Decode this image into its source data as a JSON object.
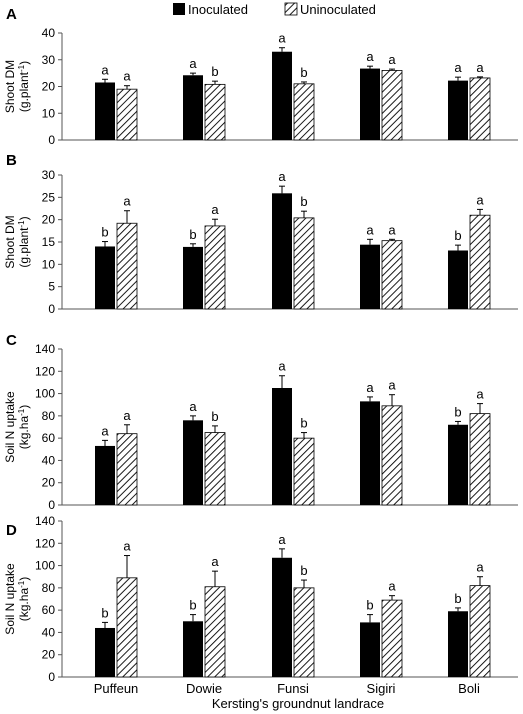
{
  "legend": {
    "placement": "top-center",
    "entries": [
      {
        "label": "Inoculated",
        "pattern": "solid-black"
      },
      {
        "label": "Uninoculated",
        "pattern": "diagonal-hatch"
      }
    ]
  },
  "x_axis_title": "Kersting's groundnut landrace",
  "colors": {
    "inoculated": "#000000",
    "uninoculated_hatch": "#000000",
    "background": "#ffffff",
    "axis": "#555555"
  },
  "chart_data": [
    {
      "panel": "A",
      "type": "bar",
      "ylabel_line1": "Shoot DM",
      "ylabel_line2": "(g.plant-1)",
      "ylabel_base": "(g.plant",
      "ylabel_sup": "-1",
      "ylabel_end": ")",
      "ylim": [
        0,
        40
      ],
      "yticks": [
        0,
        10,
        20,
        30,
        40
      ],
      "grid": false,
      "categories": [
        "Puffeun",
        "Dowie",
        "Funsi",
        "Sigiri",
        "Boli"
      ],
      "series": [
        {
          "name": "Inoculated",
          "values": [
            21.5,
            24.2,
            33.0,
            26.7,
            22.2
          ],
          "errors": [
            1.2,
            0.8,
            1.5,
            0.9,
            1.3
          ],
          "letters": [
            "a",
            "a",
            "a",
            "a",
            "a"
          ]
        },
        {
          "name": "Uninoculated",
          "values": [
            19.0,
            20.8,
            21.0,
            26.0,
            23.2
          ],
          "errors": [
            1.3,
            1.2,
            0.7,
            0.5,
            0.4
          ],
          "letters": [
            "a",
            "b",
            "b",
            "a",
            "a"
          ]
        }
      ]
    },
    {
      "panel": "B",
      "type": "bar",
      "ylabel_line1": "Shoot DM",
      "ylabel_line2": "(g.plant-1)",
      "ylabel_base": "(g.plant",
      "ylabel_sup": "-1",
      "ylabel_end": ")",
      "ylim": [
        0,
        30
      ],
      "yticks": [
        0,
        5,
        10,
        15,
        20,
        25,
        30
      ],
      "grid": false,
      "categories": [
        "Puffeun",
        "Dowie",
        "Funsi",
        "Sigiri",
        "Boli"
      ],
      "series": [
        {
          "name": "Inoculated",
          "values": [
            14.0,
            13.9,
            25.9,
            14.4,
            13.1
          ],
          "errors": [
            1.1,
            0.7,
            1.6,
            1.2,
            1.2
          ],
          "letters": [
            "b",
            "b",
            "a",
            "a",
            "b"
          ]
        },
        {
          "name": "Uninoculated",
          "values": [
            19.2,
            18.6,
            20.4,
            15.3,
            21.0
          ],
          "errors": [
            2.8,
            1.5,
            1.5,
            0.3,
            1.3
          ],
          "letters": [
            "a",
            "a",
            "b",
            "a",
            "a"
          ]
        }
      ]
    },
    {
      "panel": "C",
      "type": "bar",
      "ylabel_line1": "Soil N uptake",
      "ylabel_line2": "(kg.ha-1)",
      "ylabel_base": "(kg.ha",
      "ylabel_sup": "-1",
      "ylabel_end": ")",
      "ylim": [
        0,
        140
      ],
      "yticks": [
        0,
        20,
        40,
        60,
        80,
        100,
        120,
        140
      ],
      "grid": false,
      "categories": [
        "Puffeun",
        "Dowie",
        "Funsi",
        "Sigiri",
        "Boli"
      ],
      "series": [
        {
          "name": "Inoculated",
          "values": [
            53,
            76,
            105,
            93,
            72
          ],
          "errors": [
            5,
            4,
            11,
            4,
            3
          ],
          "letters": [
            "a",
            "a",
            "a",
            "a",
            "b"
          ]
        },
        {
          "name": "Uninoculated",
          "values": [
            64,
            65,
            60,
            89,
            82
          ],
          "errors": [
            8,
            6,
            5,
            10,
            9
          ],
          "letters": [
            "a",
            "b",
            "b",
            "a",
            "a"
          ]
        }
      ]
    },
    {
      "panel": "D",
      "type": "bar",
      "ylabel_line1": "Soil N uptake",
      "ylabel_line2": "(kg.ha-1)",
      "ylabel_base": "(kg.ha",
      "ylabel_sup": "-1",
      "ylabel_end": ")",
      "ylim": [
        0,
        140
      ],
      "yticks": [
        0,
        20,
        40,
        60,
        80,
        100,
        120,
        140
      ],
      "grid": false,
      "categories": [
        "Puffeun",
        "Dowie",
        "Funsi",
        "Sigiri",
        "Boli"
      ],
      "series": [
        {
          "name": "Inoculated",
          "values": [
            44,
            50,
            107,
            49,
            59
          ],
          "errors": [
            5,
            6,
            8,
            7,
            3
          ],
          "letters": [
            "b",
            "b",
            "a",
            "b",
            "b"
          ]
        },
        {
          "name": "Uninoculated",
          "values": [
            89,
            81,
            80,
            69,
            82
          ],
          "errors": [
            20,
            14,
            7,
            4,
            8
          ],
          "letters": [
            "a",
            "a",
            "b",
            "a",
            "a"
          ]
        }
      ]
    }
  ]
}
